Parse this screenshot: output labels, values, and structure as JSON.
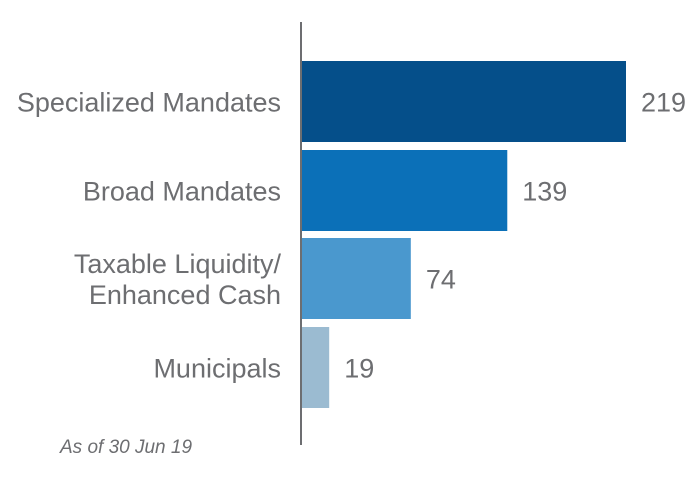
{
  "chart_data": {
    "type": "bar",
    "orientation": "horizontal",
    "categories": [
      [
        "Specialized Mandates"
      ],
      [
        "Broad Mandates"
      ],
      [
        "Taxable Liquidity/",
        "Enhanced Cash"
      ],
      [
        "Municipals"
      ]
    ],
    "values": [
      219,
      139,
      74,
      19
    ],
    "colors": [
      "#054f8a",
      "#0b70b8",
      "#4a98ce",
      "#9bbbd1"
    ],
    "axis_color": "#6d6e71",
    "xlim": [
      0,
      219
    ],
    "grid": false,
    "legend": "none"
  },
  "note": "As of 30 Jun 19"
}
